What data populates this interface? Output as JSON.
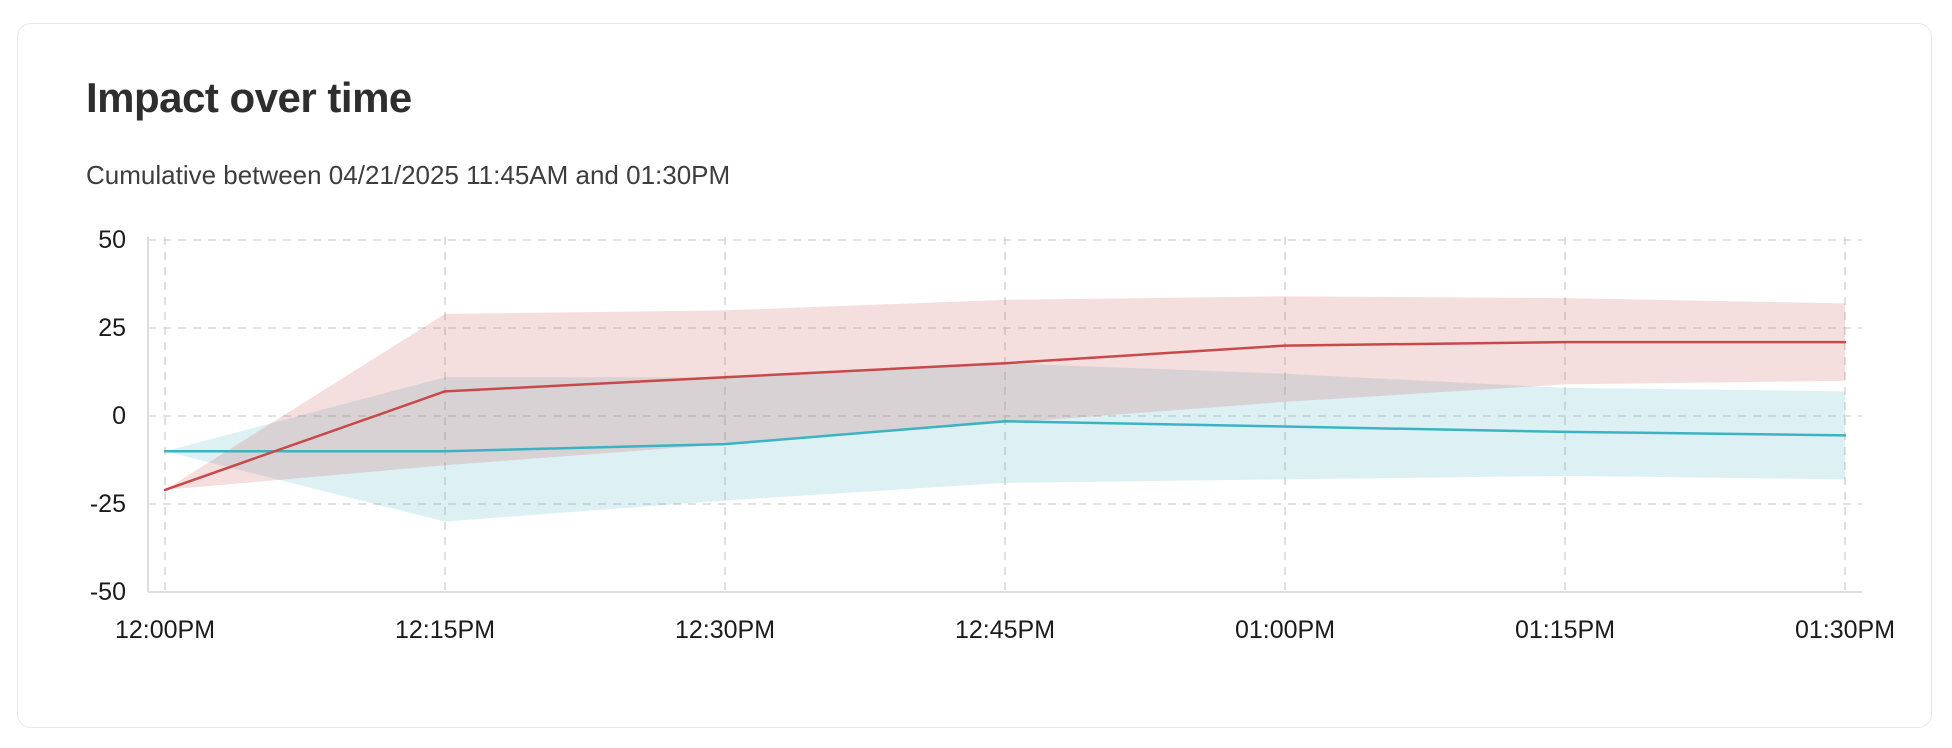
{
  "card": {
    "title": "Impact over time",
    "subtitle": "Cumulative between 04/21/2025 11:45AM and 01:30PM"
  },
  "chart_data": {
    "type": "line",
    "title": "Impact over time",
    "subtitle": "Cumulative between 04/21/2025 11:45AM and 01:30PM",
    "x": [
      "12:00PM",
      "12:15PM",
      "12:30PM",
      "12:45PM",
      "01:00PM",
      "01:15PM",
      "01:30PM"
    ],
    "y_ticks": [
      50,
      25,
      0,
      -25,
      -50
    ],
    "ylim": [
      -50,
      50
    ],
    "grid": "dashed",
    "legend": "none",
    "series": [
      {
        "name": "red-series",
        "color": "#c8494a",
        "band_color": "rgba(200,72,72,0.18)",
        "values": [
          -21,
          7,
          11,
          15,
          20,
          21,
          21
        ],
        "band_low": [
          -21,
          -14,
          -8,
          -2,
          4,
          9,
          10
        ],
        "band_high": [
          -21,
          29,
          30,
          33,
          34,
          33.5,
          32
        ]
      },
      {
        "name": "cyan-series",
        "color": "#3cb3c3",
        "band_color": "rgba(69,180,194,0.18)",
        "values": [
          -10,
          -10,
          -8,
          -1.5,
          -3,
          -4.5,
          -5.5
        ],
        "band_low": [
          -10,
          -30,
          -24,
          -19,
          -18,
          -17,
          -18
        ],
        "band_high": [
          -10,
          11,
          11,
          15,
          12,
          8,
          7
        ]
      }
    ]
  }
}
